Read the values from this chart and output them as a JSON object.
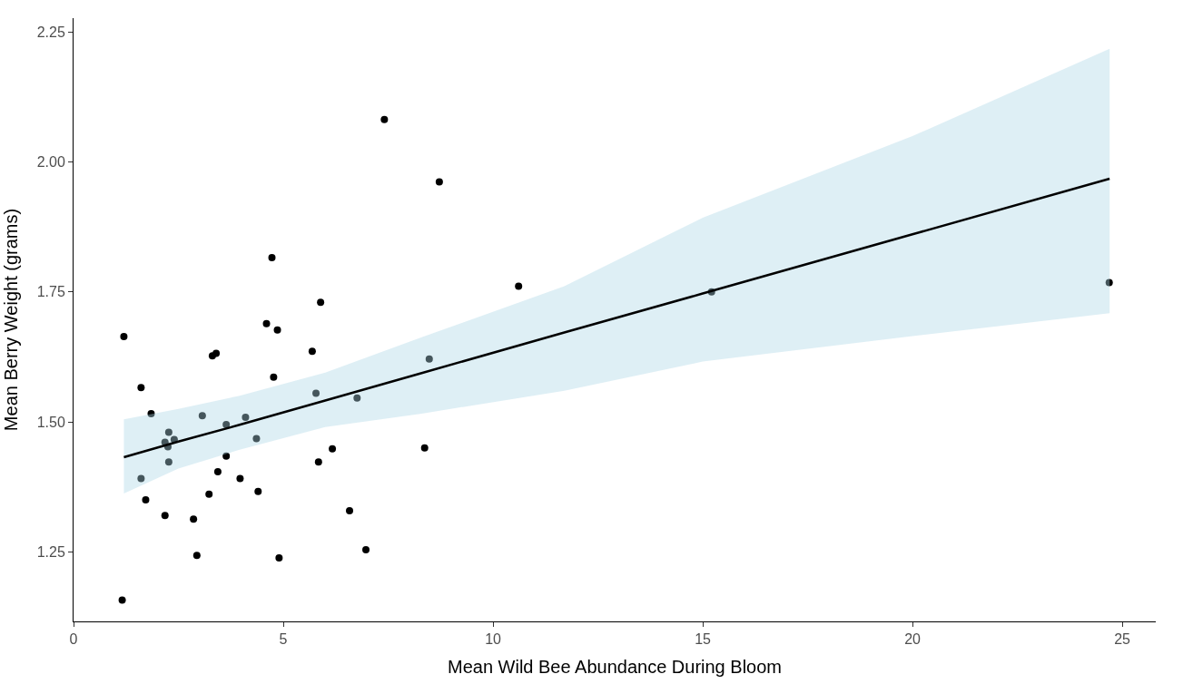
{
  "chart_data": {
    "type": "scatter",
    "xlabel": "Mean Wild Bee Abundance During Bloom",
    "ylabel": "Mean Berry Weight (grams)",
    "xlim": [
      0,
      25.8
    ],
    "ylim": [
      1.116,
      2.277
    ],
    "xticks": [
      0,
      5,
      10,
      15,
      20,
      25
    ],
    "yticks": [
      {
        "value": 1.25,
        "label": "1.25"
      },
      {
        "value": 1.5,
        "label": "1.50"
      },
      {
        "value": 1.75,
        "label": "1.75"
      },
      {
        "value": 2.0,
        "label": "2.00"
      },
      {
        "value": 2.25,
        "label": "2.25"
      }
    ],
    "series": [
      {
        "color": "#000000",
        "marker": "circle",
        "x": [
          1.16,
          1.2,
          1.61,
          1.61,
          1.72,
          1.85,
          2.18,
          2.18,
          2.25,
          2.27,
          2.27,
          2.4,
          2.86,
          2.94,
          3.07,
          3.23,
          3.31,
          3.4,
          3.44,
          3.64,
          3.64,
          3.97,
          4.1,
          4.36,
          4.4,
          4.6,
          4.73,
          4.77,
          4.86,
          4.9,
          5.69,
          5.78,
          5.84,
          5.89,
          6.17,
          6.58,
          6.76,
          6.97,
          7.41,
          8.37,
          8.48,
          8.72,
          10.61,
          15.21,
          24.69
        ],
        "values": [
          1.157,
          1.664,
          1.391,
          1.566,
          1.35,
          1.516,
          1.32,
          1.461,
          1.452,
          1.48,
          1.423,
          1.466,
          1.313,
          1.243,
          1.512,
          1.361,
          1.627,
          1.632,
          1.404,
          1.434,
          1.495,
          1.391,
          1.509,
          1.468,
          1.366,
          1.689,
          1.816,
          1.586,
          1.677,
          1.238,
          1.636,
          1.555,
          1.423,
          1.73,
          1.448,
          1.329,
          1.546,
          1.254,
          2.082,
          1.45,
          1.621,
          1.962,
          1.761,
          1.75,
          1.768
        ]
      },
      {
        "type": "line",
        "color": "#000000",
        "marker": "none",
        "x": [
          1.2,
          2.5,
          3.94,
          6,
          8.3,
          11.7,
          15,
          20,
          24.7
        ],
        "values": [
          1.432,
          1.462,
          1.494,
          1.541,
          1.594,
          1.672,
          1.747,
          1.861,
          1.968
        ],
        "lower": [
          1.362,
          1.41,
          1.446,
          1.49,
          1.516,
          1.56,
          1.616,
          1.665,
          1.709
        ],
        "upper": [
          1.505,
          1.525,
          1.55,
          1.595,
          1.663,
          1.761,
          1.893,
          2.05,
          2.218
        ]
      }
    ]
  }
}
